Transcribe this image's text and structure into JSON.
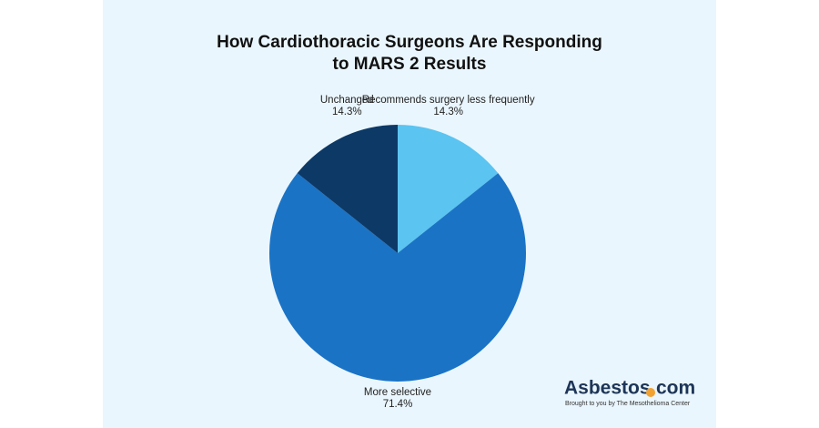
{
  "chart_data": {
    "type": "pie",
    "title": [
      "How Cardiothoracic Surgeons Are Responding",
      "to MARS 2 Results"
    ],
    "categories": [
      "Recommends surgery less frequently",
      "More selective",
      "Unchanged"
    ],
    "values": [
      14.3,
      71.4,
      14.3
    ],
    "value_labels": [
      "14.3%",
      "71.4%",
      "14.3%"
    ],
    "colors": [
      "#5bc4f1",
      "#1a73c5",
      "#0d3966"
    ]
  },
  "logo": {
    "brand": "Asbestos",
    "suffix": "com",
    "tagline": "Brought to you by The Mesothelioma Center"
  }
}
